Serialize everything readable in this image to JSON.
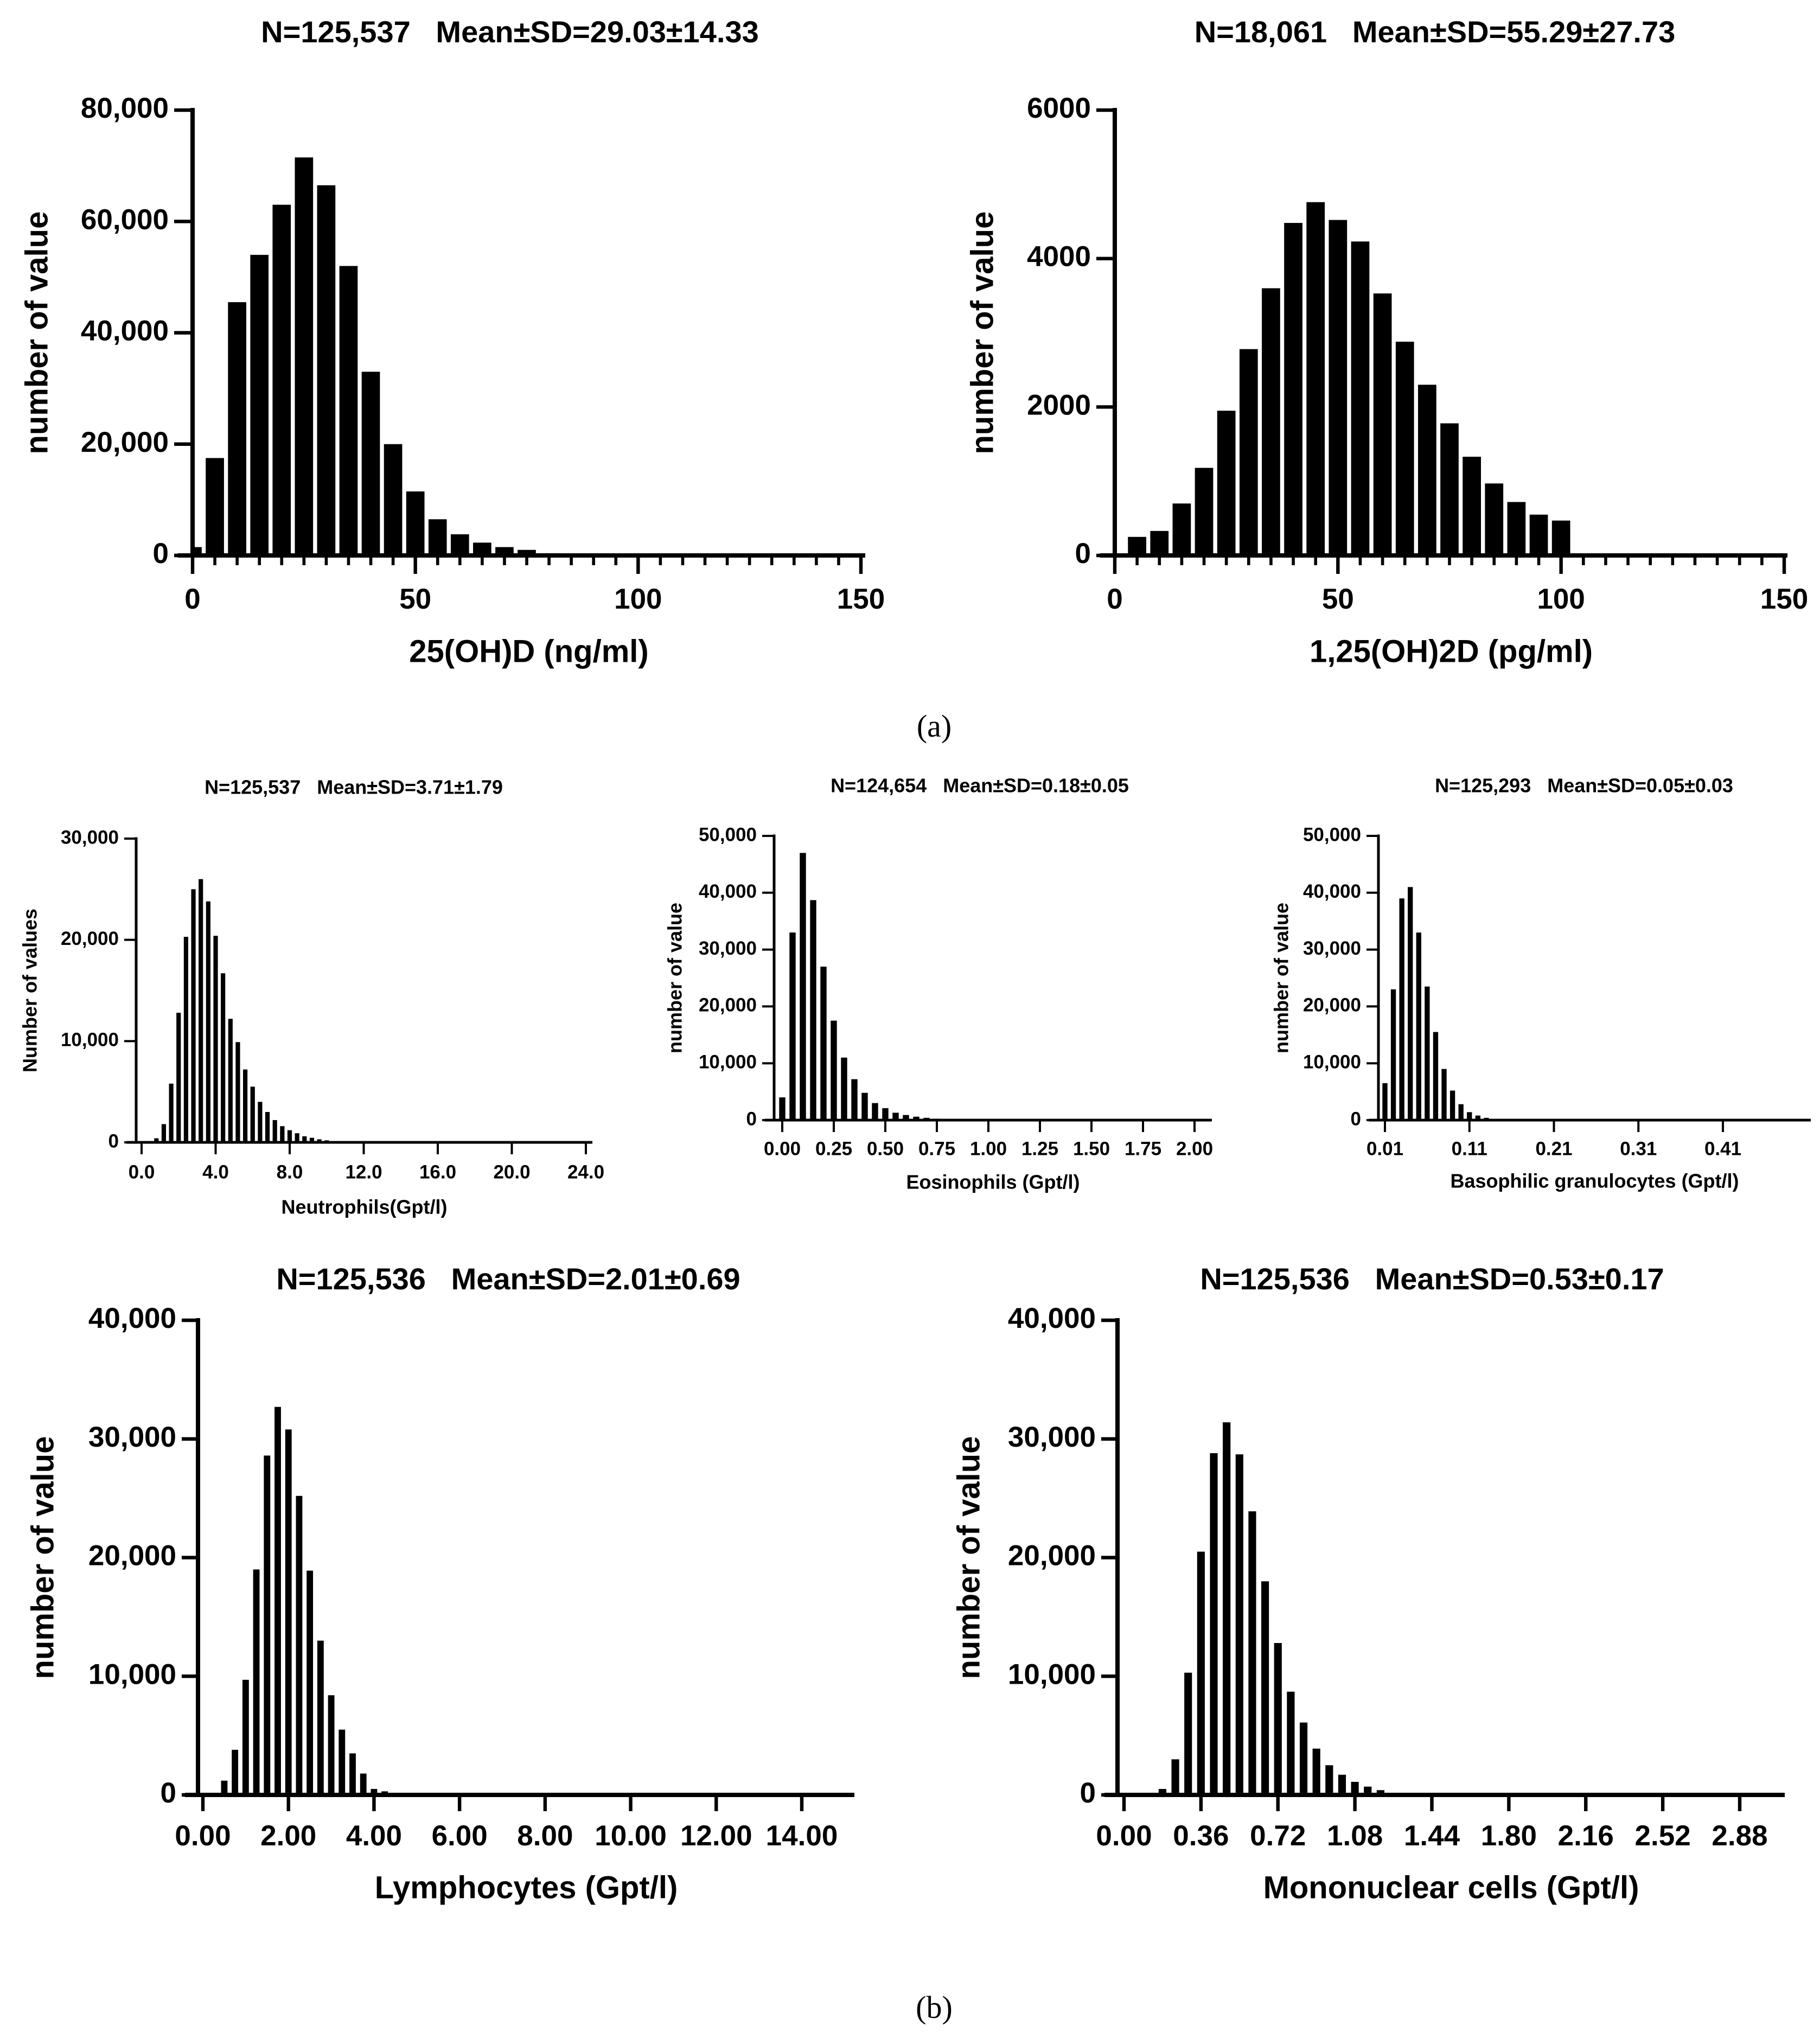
{
  "panel_labels": {
    "a": "(a)",
    "b": "(b)"
  },
  "colors": {
    "bar": "#000000",
    "axis": "#000000",
    "background": "#ffffff"
  },
  "chart_data": [
    {
      "type": "bar",
      "title": "N=125,537   Mean±SD=29.03±14.33",
      "xlabel": "25(OH)D (ng/ml)",
      "ylabel": "number of value",
      "xticks": [
        0,
        50,
        100,
        150
      ],
      "xtick_labels": [
        "0",
        "50",
        "100",
        "150"
      ],
      "minor_xtick_step": 5,
      "yticks": [
        0,
        20000,
        40000,
        60000,
        80000
      ],
      "ytick_labels": [
        "0",
        "20,000",
        "40,000",
        "60,000",
        "80,000"
      ],
      "ylim": [
        0,
        80000
      ],
      "bin_width": 5,
      "x": [
        0,
        5,
        10,
        15,
        20,
        25,
        30,
        35,
        40,
        45,
        50,
        55,
        60,
        65,
        70,
        75,
        80,
        85
      ],
      "values": [
        1500,
        17500,
        45500,
        54000,
        63000,
        71500,
        66500,
        52000,
        33000,
        20000,
        11500,
        6500,
        3800,
        2300,
        1500,
        1000,
        400,
        200
      ]
    },
    {
      "type": "bar",
      "title": "N=18,061   Mean±SD=55.29±27.73",
      "xlabel": "1,25(OH)2D (pg/ml)",
      "ylabel": "number of value",
      "xticks": [
        0,
        50,
        100,
        150
      ],
      "xtick_labels": [
        "0",
        "50",
        "100",
        "150"
      ],
      "minor_xtick_step": 5,
      "yticks": [
        0,
        2000,
        4000,
        6000
      ],
      "ytick_labels": [
        "0",
        "2000",
        "4000",
        "6000"
      ],
      "ylim": [
        0,
        6000
      ],
      "bin_width": 5,
      "x": [
        5,
        10,
        15,
        20,
        25,
        30,
        35,
        40,
        45,
        50,
        55,
        60,
        65,
        70,
        75,
        80,
        85,
        90,
        95,
        100
      ],
      "values": [
        250,
        330,
        700,
        1180,
        1950,
        2780,
        3600,
        4480,
        4760,
        4520,
        4230,
        3530,
        2880,
        2300,
        1780,
        1330,
        970,
        720,
        550,
        470
      ]
    },
    {
      "type": "bar",
      "title": "N=125,537   Mean±SD=3.71±1.79",
      "xlabel": "Neutrophils(Gpt/l)",
      "ylabel": "Number of values",
      "xticks": [
        0,
        4,
        8,
        12,
        16,
        20,
        24
      ],
      "xtick_labels": [
        "0.0",
        "4.0",
        "8.0",
        "12.0",
        "16.0",
        "20.0",
        "24.0"
      ],
      "yticks": [
        0,
        10000,
        20000,
        30000
      ],
      "ytick_labels": [
        "0",
        "10,000",
        "20,000",
        "30,000"
      ],
      "ylim": [
        0,
        30000
      ],
      "bin_width": 0.4,
      "x": [
        0.8,
        1.2,
        1.6,
        2.0,
        2.4,
        2.8,
        3.2,
        3.6,
        4.0,
        4.4,
        4.8,
        5.2,
        5.6,
        6.0,
        6.4,
        6.8,
        7.2,
        7.6,
        8.0,
        8.4,
        8.8,
        9.2,
        9.6,
        10.0,
        10.4,
        10.8
      ],
      "values": [
        400,
        1800,
        5800,
        12800,
        20300,
        25000,
        26000,
        23800,
        20400,
        16700,
        12200,
        9900,
        7200,
        5500,
        4000,
        3000,
        2200,
        1600,
        1200,
        900,
        600,
        450,
        300,
        200,
        120,
        60
      ]
    },
    {
      "type": "bar",
      "title": "N=124,654   Mean±SD=0.18±0.05",
      "xlabel": "Eosinophils (Gpt/l)",
      "ylabel": "number of value",
      "xticks": [
        0,
        0.25,
        0.5,
        0.75,
        1.0,
        1.25,
        1.5,
        1.75,
        2.0
      ],
      "xtick_labels": [
        "0.00",
        "0.25",
        "0.50",
        "0.75",
        "1.00",
        "1.25",
        "1.50",
        "1.75",
        "2.00"
      ],
      "yticks": [
        0,
        10000,
        20000,
        30000,
        40000,
        50000
      ],
      "ytick_labels": [
        "0",
        "10,000",
        "20,000",
        "30,000",
        "40,000",
        "50,000"
      ],
      "ylim": [
        0,
        50000
      ],
      "bin_width": 0.05,
      "x": [
        0.0,
        0.05,
        0.1,
        0.15,
        0.2,
        0.25,
        0.3,
        0.35,
        0.4,
        0.45,
        0.5,
        0.55,
        0.6,
        0.65,
        0.7,
        0.75,
        0.8
      ],
      "values": [
        4000,
        33000,
        47000,
        38700,
        27000,
        17500,
        11000,
        7200,
        4800,
        3000,
        2100,
        1300,
        900,
        600,
        400,
        250,
        120
      ]
    },
    {
      "type": "bar",
      "title": "N=125,293   Mean±SD=0.05±0.03",
      "xlabel": "Basophilic granulocytes (Gpt/l)",
      "ylabel": "number of value",
      "xticks": [
        0.01,
        0.11,
        0.21,
        0.31,
        0.41
      ],
      "xtick_labels": [
        "0.01",
        "0.11",
        "0.21",
        "0.31",
        "0.41"
      ],
      "yticks": [
        0,
        10000,
        20000,
        30000,
        40000,
        50000
      ],
      "ytick_labels": [
        "0",
        "10,000",
        "20,000",
        "30,000",
        "40,000",
        "50,000"
      ],
      "ylim": [
        0,
        50000
      ],
      "bin_width": 0.01,
      "x": [
        0.01,
        0.02,
        0.03,
        0.04,
        0.05,
        0.06,
        0.07,
        0.08,
        0.09,
        0.1,
        0.11,
        0.12,
        0.13,
        0.14
      ],
      "values": [
        6500,
        23000,
        39000,
        41000,
        33000,
        23500,
        15500,
        9000,
        5200,
        2800,
        1400,
        800,
        400,
        150
      ]
    },
    {
      "type": "bar",
      "title": "N=125,536   Mean±SD=2.01±0.69",
      "xlabel": "Lymphocytes (Gpt/l)",
      "ylabel": "number of value",
      "xticks": [
        0,
        2,
        4,
        6,
        8,
        10,
        12,
        14
      ],
      "xtick_labels": [
        "0.00",
        "2.00",
        "4.00",
        "6.00",
        "8.00",
        "10.00",
        "12.00",
        "14.00"
      ],
      "yticks": [
        0,
        10000,
        20000,
        30000,
        40000
      ],
      "ytick_labels": [
        "0",
        "10,000",
        "20,000",
        "30,000",
        "40,000"
      ],
      "ylim": [
        0,
        40000
      ],
      "bin_width": 0.25,
      "x": [
        0.25,
        0.5,
        0.75,
        1.0,
        1.25,
        1.5,
        1.75,
        2.0,
        2.25,
        2.5,
        2.75,
        3.0,
        3.25,
        3.5,
        3.75,
        4.0,
        4.25,
        4.5
      ],
      "values": [
        100,
        1200,
        3800,
        9700,
        19000,
        28600,
        32700,
        30800,
        25200,
        18900,
        13000,
        8400,
        5500,
        3500,
        1800,
        500,
        300,
        100
      ]
    },
    {
      "type": "bar",
      "title": "N=125,536   Mean±SD=0.53±0.17",
      "xlabel": "Mononuclear cells (Gpt/l)",
      "ylabel": "number of value",
      "xticks": [
        0,
        0.36,
        0.72,
        1.08,
        1.44,
        1.8,
        2.16,
        2.52,
        2.88
      ],
      "xtick_labels": [
        "0.00",
        "0.36",
        "0.72",
        "1.08",
        "1.44",
        "1.80",
        "2.16",
        "2.52",
        "2.88"
      ],
      "yticks": [
        0,
        10000,
        20000,
        30000,
        40000
      ],
      "ytick_labels": [
        "0",
        "10,000",
        "20,000",
        "30,000",
        "40,000"
      ],
      "ylim": [
        0,
        40000
      ],
      "bin_width": 0.06,
      "x": [
        0.18,
        0.24,
        0.3,
        0.36,
        0.42,
        0.48,
        0.54,
        0.6,
        0.66,
        0.72,
        0.78,
        0.84,
        0.9,
        0.96,
        1.02,
        1.08,
        1.14,
        1.2,
        1.26,
        1.32
      ],
      "values": [
        500,
        3000,
        10300,
        20500,
        28800,
        31400,
        28700,
        23900,
        18000,
        12800,
        8700,
        6100,
        3900,
        2500,
        1700,
        1100,
        700,
        400,
        150,
        80
      ]
    }
  ]
}
